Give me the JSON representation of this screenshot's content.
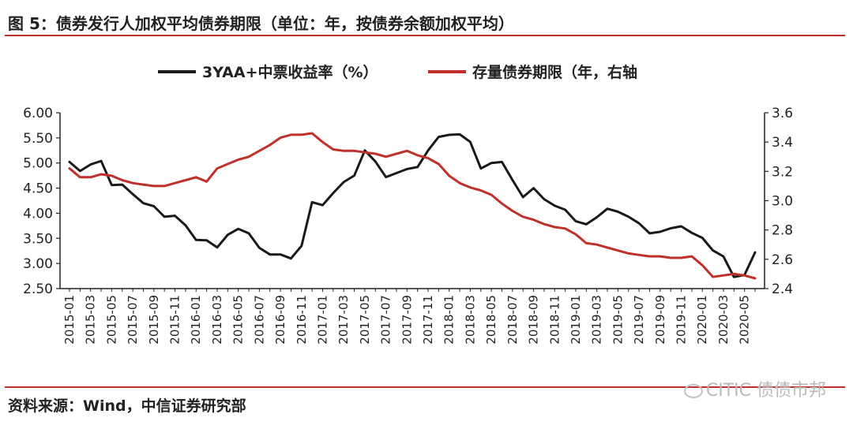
{
  "title": "图 5：债券发行人加权平均债券期限（单位：年，按债券余额加权平均）",
  "source": "资料来源：Wind，中信证券研究部",
  "watermark": "CITIC 债债市邦",
  "colors": {
    "series1": "#1a1a1a",
    "series2": "#c0302a",
    "rule": "#c0302a"
  },
  "chart_data": {
    "type": "line",
    "legend_position": "top",
    "grid": false,
    "x": [
      "2015-01",
      "2015-02",
      "2015-03",
      "2015-04",
      "2015-05",
      "2015-06",
      "2015-07",
      "2015-08",
      "2015-09",
      "2015-10",
      "2015-11",
      "2015-12",
      "2016-01",
      "2016-02",
      "2016-03",
      "2016-04",
      "2016-05",
      "2016-06",
      "2016-07",
      "2016-08",
      "2016-09",
      "2016-10",
      "2016-11",
      "2016-12",
      "2017-01",
      "2017-02",
      "2017-03",
      "2017-04",
      "2017-05",
      "2017-06",
      "2017-07",
      "2017-08",
      "2017-09",
      "2017-10",
      "2017-11",
      "2017-12",
      "2018-01",
      "2018-02",
      "2018-03",
      "2018-04",
      "2018-05",
      "2018-06",
      "2018-07",
      "2018-08",
      "2018-09",
      "2018-10",
      "2018-11",
      "2018-12",
      "2019-01",
      "2019-02",
      "2019-03",
      "2019-04",
      "2019-05",
      "2019-06",
      "2019-07",
      "2019-08",
      "2019-09",
      "2019-10",
      "2019-11",
      "2019-12",
      "2020-01",
      "2020-02",
      "2020-03",
      "2020-04",
      "2020-05",
      "2020-06"
    ],
    "x_tick_labels": [
      "2015-01",
      "2015-03",
      "2015-05",
      "2015-07",
      "2015-09",
      "2015-11",
      "2016-01",
      "2016-03",
      "2016-05",
      "2016-07",
      "2016-09",
      "2016-11",
      "2017-01",
      "2017-03",
      "2017-05",
      "2017-07",
      "2017-09",
      "2017-11",
      "2018-01",
      "2018-03",
      "2018-05",
      "2018-07",
      "2018-09",
      "2018-11",
      "2019-01",
      "2019-03",
      "2019-05",
      "2019-07",
      "2019-09",
      "2019-11",
      "2020-01",
      "2020-03",
      "2020-05"
    ],
    "y_left": {
      "ticks": [
        "6.00",
        "5.50",
        "5.00",
        "4.50",
        "4.00",
        "3.50",
        "3.00",
        "2.50"
      ],
      "range": [
        2.5,
        6.0
      ]
    },
    "y_right": {
      "ticks": [
        "3.6",
        "3.4",
        "3.2",
        "3.0",
        "2.8",
        "2.6",
        "2.4"
      ],
      "range": [
        2.4,
        3.6
      ]
    },
    "series": [
      {
        "name": "3YAA+中票收益率（%）",
        "axis": "left",
        "values": [
          5.02,
          4.84,
          4.97,
          5.04,
          4.56,
          4.57,
          4.38,
          4.2,
          4.14,
          3.93,
          3.95,
          3.76,
          3.47,
          3.46,
          3.32,
          3.57,
          3.69,
          3.6,
          3.31,
          3.18,
          3.18,
          3.1,
          3.35,
          4.22,
          4.16,
          4.4,
          4.62,
          4.75,
          5.25,
          5.03,
          4.72,
          4.8,
          4.88,
          4.92,
          5.25,
          5.52,
          5.56,
          5.57,
          5.42,
          4.89,
          5.0,
          5.02,
          4.66,
          4.32,
          4.5,
          4.28,
          4.15,
          4.07,
          3.84,
          3.78,
          3.92,
          4.09,
          4.03,
          3.93,
          3.8,
          3.6,
          3.63,
          3.7,
          3.74,
          3.61,
          3.51,
          3.26,
          3.14,
          2.73,
          2.77,
          3.22
        ]
      },
      {
        "name": "存量债券期限（年，右轴",
        "axis": "right",
        "values": [
          3.22,
          3.16,
          3.16,
          3.18,
          3.17,
          3.14,
          3.12,
          3.11,
          3.1,
          3.1,
          3.12,
          3.14,
          3.16,
          3.13,
          3.22,
          3.25,
          3.28,
          3.3,
          3.34,
          3.38,
          3.43,
          3.45,
          3.45,
          3.46,
          3.4,
          3.35,
          3.34,
          3.34,
          3.33,
          3.32,
          3.3,
          3.32,
          3.34,
          3.31,
          3.29,
          3.25,
          3.17,
          3.12,
          3.09,
          3.07,
          3.04,
          2.98,
          2.93,
          2.89,
          2.87,
          2.84,
          2.82,
          2.81,
          2.77,
          2.71,
          2.7,
          2.68,
          2.66,
          2.64,
          2.63,
          2.62,
          2.62,
          2.61,
          2.61,
          2.62,
          2.56,
          2.48,
          2.49,
          2.5,
          2.49,
          2.47
        ]
      }
    ]
  }
}
